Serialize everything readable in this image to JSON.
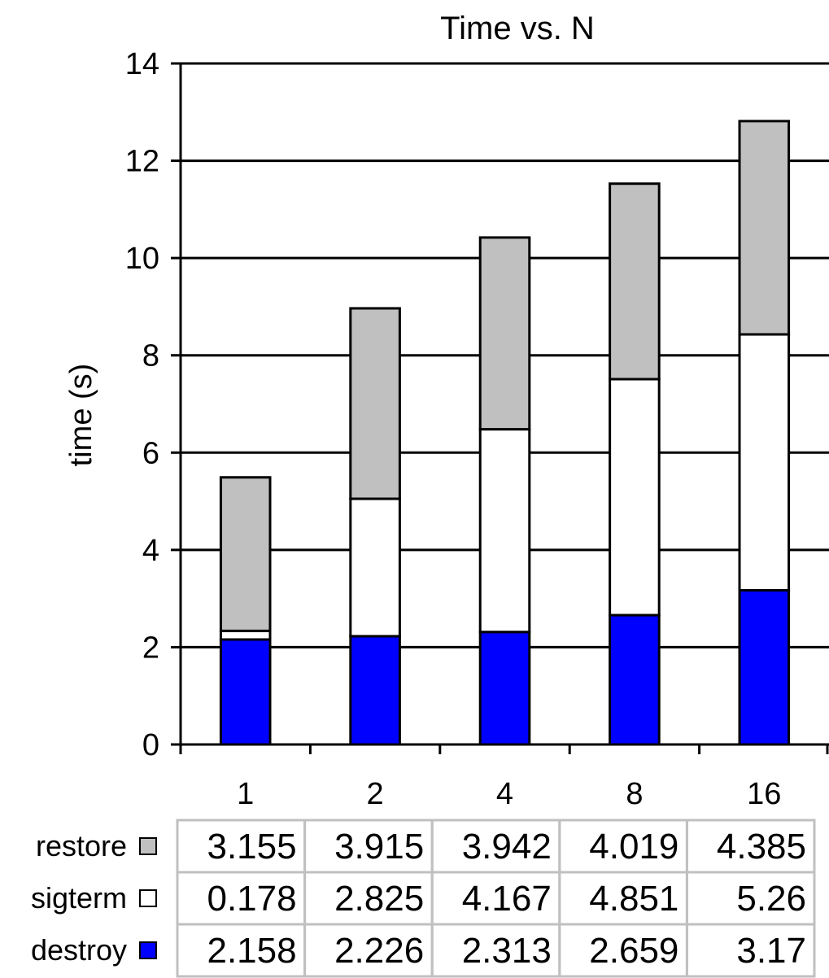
{
  "chart_data": {
    "type": "bar",
    "stacked": true,
    "title": "Time vs. N",
    "xlabel": "",
    "ylabel": "time (s)",
    "ylim": [
      0,
      14
    ],
    "yticks": [
      0,
      2,
      4,
      6,
      8,
      10,
      12,
      14
    ],
    "grid": true,
    "legend_placement": "data-table-left",
    "categories": [
      "1",
      "2",
      "4",
      "8",
      "16"
    ],
    "series": [
      {
        "name": "destroy",
        "color": "#0000ff",
        "values": [
          2.158,
          2.226,
          2.313,
          2.659,
          3.17
        ],
        "labels": [
          "2.158",
          "2.226",
          "2.313",
          "2.659",
          "3.17"
        ]
      },
      {
        "name": "sigterm",
        "color": "#ffffff",
        "values": [
          0.178,
          2.825,
          4.167,
          4.851,
          5.26
        ],
        "labels": [
          "0.178",
          "2.825",
          "4.167",
          "4.851",
          "5.26"
        ]
      },
      {
        "name": "restore",
        "color": "#c0c0c0",
        "values": [
          3.155,
          3.915,
          3.942,
          4.019,
          4.385
        ],
        "labels": [
          "3.155",
          "3.915",
          "3.942",
          "4.019",
          "4.385"
        ]
      }
    ],
    "table_row_order": [
      "restore",
      "sigterm",
      "destroy"
    ]
  }
}
